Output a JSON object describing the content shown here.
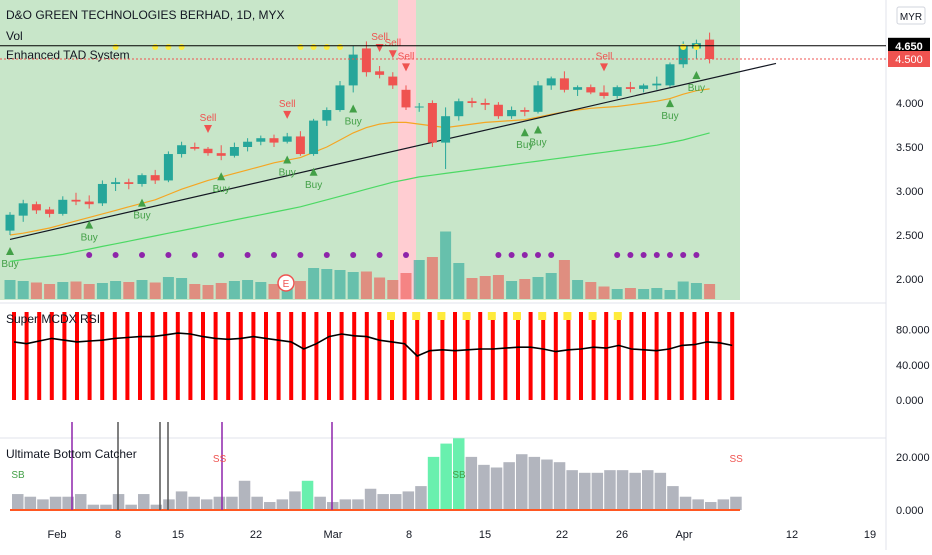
{
  "header": {
    "title": "D&O GREEN TECHNOLOGIES BERHAD, 1D, MYX",
    "vol_label": "Vol",
    "indicator_label": "Enhanced TAD System",
    "currency_label": "MYR"
  },
  "price_tags": {
    "last_price": "4.650",
    "last_price_color": "#000000",
    "close_price": "4.500",
    "close_price_color": "#ef5350"
  },
  "panel2": {
    "title": "Super MCDX RSI"
  },
  "panel3": {
    "title": "Ultimate Bottom Catcher"
  },
  "colors": {
    "up": "#26a69a",
    "down": "#ef5350",
    "bg_green": "#c8e6c9",
    "highlight": "#ffcdd2",
    "buy": "#43a047",
    "sell": "#ef5350",
    "ema_orange": "#f5a623",
    "ma_green": "#4cd964",
    "purple": "#8e24aa",
    "yellow": "#ffeb3b"
  },
  "chart_data": [
    {
      "type": "candlestick",
      "title": "D&O GREEN TECHNOLOGIES BERHAD, 1D, MYX",
      "ylim": [
        1.8,
        5.0
      ],
      "yticks": [
        "2.000",
        "2.500",
        "3.000",
        "3.500",
        "4.000",
        "4.500"
      ],
      "xticks": [
        "Feb",
        "8",
        "15",
        "22",
        "Mar",
        "8",
        "15",
        "22",
        "26",
        "Apr",
        "12",
        "19"
      ],
      "candles": [
        {
          "o": 2.55,
          "h": 2.76,
          "l": 2.5,
          "c": 2.73
        },
        {
          "o": 2.72,
          "h": 2.9,
          "l": 2.65,
          "c": 2.86
        },
        {
          "o": 2.85,
          "h": 2.88,
          "l": 2.74,
          "c": 2.78
        },
        {
          "o": 2.79,
          "h": 2.82,
          "l": 2.7,
          "c": 2.74
        },
        {
          "o": 2.74,
          "h": 2.94,
          "l": 2.72,
          "c": 2.9
        },
        {
          "o": 2.9,
          "h": 2.98,
          "l": 2.84,
          "c": 2.88
        },
        {
          "o": 2.88,
          "h": 2.95,
          "l": 2.8,
          "c": 2.85
        },
        {
          "o": 2.86,
          "h": 3.12,
          "l": 2.83,
          "c": 3.08
        },
        {
          "o": 3.08,
          "h": 3.15,
          "l": 3.0,
          "c": 3.1
        },
        {
          "o": 3.1,
          "h": 3.14,
          "l": 3.02,
          "c": 3.08
        },
        {
          "o": 3.08,
          "h": 3.2,
          "l": 3.05,
          "c": 3.18
        },
        {
          "o": 3.18,
          "h": 3.24,
          "l": 3.08,
          "c": 3.12
        },
        {
          "o": 3.12,
          "h": 3.45,
          "l": 3.1,
          "c": 3.42
        },
        {
          "o": 3.42,
          "h": 3.56,
          "l": 3.38,
          "c": 3.52
        },
        {
          "o": 3.5,
          "h": 3.55,
          "l": 3.46,
          "c": 3.48
        },
        {
          "o": 3.48,
          "h": 3.5,
          "l": 3.4,
          "c": 3.43
        },
        {
          "o": 3.43,
          "h": 3.52,
          "l": 3.35,
          "c": 3.4
        },
        {
          "o": 3.4,
          "h": 3.55,
          "l": 3.38,
          "c": 3.5
        },
        {
          "o": 3.5,
          "h": 3.6,
          "l": 3.45,
          "c": 3.56
        },
        {
          "o": 3.56,
          "h": 3.63,
          "l": 3.52,
          "c": 3.6
        },
        {
          "o": 3.6,
          "h": 3.64,
          "l": 3.5,
          "c": 3.55
        },
        {
          "o": 3.56,
          "h": 3.66,
          "l": 3.54,
          "c": 3.62
        },
        {
          "o": 3.62,
          "h": 3.68,
          "l": 3.4,
          "c": 3.42
        },
        {
          "o": 3.42,
          "h": 3.82,
          "l": 3.4,
          "c": 3.8
        },
        {
          "o": 3.8,
          "h": 3.95,
          "l": 3.74,
          "c": 3.92
        },
        {
          "o": 3.92,
          "h": 4.25,
          "l": 3.9,
          "c": 4.2
        },
        {
          "o": 4.2,
          "h": 4.65,
          "l": 4.12,
          "c": 4.55
        },
        {
          "o": 4.62,
          "h": 4.7,
          "l": 4.3,
          "c": 4.35
        },
        {
          "o": 4.36,
          "h": 4.42,
          "l": 4.28,
          "c": 4.32
        },
        {
          "o": 4.3,
          "h": 4.35,
          "l": 4.16,
          "c": 4.2
        },
        {
          "o": 4.15,
          "h": 4.2,
          "l": 3.92,
          "c": 3.95
        },
        {
          "o": 3.95,
          "h": 4.0,
          "l": 3.9,
          "c": 3.96
        },
        {
          "o": 4.0,
          "h": 4.03,
          "l": 3.5,
          "c": 3.55
        },
        {
          "o": 3.55,
          "h": 3.95,
          "l": 3.25,
          "c": 3.85
        },
        {
          "o": 3.85,
          "h": 4.05,
          "l": 3.8,
          "c": 4.02
        },
        {
          "o": 4.02,
          "h": 4.06,
          "l": 3.95,
          "c": 4.0
        },
        {
          "o": 4.0,
          "h": 4.05,
          "l": 3.92,
          "c": 3.98
        },
        {
          "o": 3.98,
          "h": 4.01,
          "l": 3.82,
          "c": 3.85
        },
        {
          "o": 3.85,
          "h": 3.96,
          "l": 3.82,
          "c": 3.92
        },
        {
          "o": 3.92,
          "h": 3.95,
          "l": 3.85,
          "c": 3.9
        },
        {
          "o": 3.9,
          "h": 4.25,
          "l": 3.88,
          "c": 4.2
        },
        {
          "o": 4.2,
          "h": 4.3,
          "l": 4.15,
          "c": 4.28
        },
        {
          "o": 4.28,
          "h": 4.36,
          "l": 4.12,
          "c": 4.15
        },
        {
          "o": 4.15,
          "h": 4.2,
          "l": 4.08,
          "c": 4.18
        },
        {
          "o": 4.18,
          "h": 4.21,
          "l": 4.1,
          "c": 4.12
        },
        {
          "o": 4.12,
          "h": 4.2,
          "l": 4.05,
          "c": 4.08
        },
        {
          "o": 4.08,
          "h": 4.2,
          "l": 4.05,
          "c": 4.18
        },
        {
          "o": 4.18,
          "h": 4.24,
          "l": 4.12,
          "c": 4.16
        },
        {
          "o": 4.16,
          "h": 4.22,
          "l": 4.12,
          "c": 4.2
        },
        {
          "o": 4.2,
          "h": 4.3,
          "l": 4.15,
          "c": 4.22
        },
        {
          "o": 4.2,
          "h": 4.46,
          "l": 4.18,
          "c": 4.44
        },
        {
          "o": 4.44,
          "h": 4.7,
          "l": 4.4,
          "c": 4.65
        },
        {
          "o": 4.62,
          "h": 4.72,
          "l": 4.5,
          "c": 4.68
        },
        {
          "o": 4.72,
          "h": 4.8,
          "l": 4.45,
          "c": 4.5
        }
      ],
      "volume": [
        38,
        36,
        33,
        30,
        34,
        35,
        30,
        32,
        36,
        34,
        38,
        33,
        44,
        42,
        30,
        28,
        32,
        36,
        38,
        34,
        30,
        35,
        36,
        62,
        60,
        58,
        54,
        55,
        43,
        38,
        52,
        78,
        84,
        135,
        72,
        42,
        46,
        48,
        36,
        40,
        44,
        52,
        78,
        38,
        34,
        25,
        20,
        22,
        20,
        22,
        18,
        35,
        32,
        30,
        28
      ],
      "signals": {
        "buy": [
          {
            "i": 0,
            "label": "Buy"
          },
          {
            "i": 6,
            "label": "Buy"
          },
          {
            "i": 10,
            "label": "Buy"
          },
          {
            "i": 16,
            "label": "Buy"
          },
          {
            "i": 21,
            "label": "Buy"
          },
          {
            "i": 23,
            "label": "Buy"
          },
          {
            "i": 26,
            "label": "Buy"
          },
          {
            "i": 39,
            "label": "Buy"
          },
          {
            "i": 40,
            "label": "Buy"
          },
          {
            "i": 50,
            "label": "Buy"
          },
          {
            "i": 52,
            "label": "Buy"
          }
        ],
        "sell": [
          {
            "i": 15,
            "label": "Sell"
          },
          {
            "i": 21,
            "label": "Sell"
          },
          {
            "i": 28,
            "label": "Sell"
          },
          {
            "i": 29,
            "label": "Sell"
          },
          {
            "i": 30,
            "label": "Sell"
          },
          {
            "i": 45,
            "label": "Sell"
          }
        ]
      },
      "ema_orange": [
        2.5,
        2.52,
        2.55,
        2.58,
        2.62,
        2.66,
        2.7,
        2.74,
        2.78,
        2.82,
        2.86,
        2.9,
        2.96,
        3.02,
        3.07,
        3.12,
        3.16,
        3.2,
        3.24,
        3.28,
        3.32,
        3.35,
        3.38,
        3.44,
        3.5,
        3.58,
        3.66,
        3.72,
        3.76,
        3.78,
        3.78,
        3.76,
        3.74,
        3.72,
        3.74,
        3.76,
        3.78,
        3.79,
        3.8,
        3.81,
        3.84,
        3.87,
        3.9,
        3.92,
        3.94,
        3.95,
        3.96,
        3.98,
        4.0,
        4.02,
        4.05,
        4.1,
        4.14,
        4.16
      ],
      "ma_green": [
        2.2,
        2.22,
        2.24,
        2.26,
        2.28,
        2.31,
        2.34,
        2.37,
        2.4,
        2.43,
        2.46,
        2.49,
        2.52,
        2.55,
        2.58,
        2.61,
        2.64,
        2.67,
        2.7,
        2.73,
        2.76,
        2.79,
        2.82,
        2.86,
        2.9,
        2.94,
        2.98,
        3.02,
        3.06,
        3.1,
        3.13,
        3.16,
        3.18,
        3.2,
        3.22,
        3.24,
        3.26,
        3.28,
        3.3,
        3.32,
        3.34,
        3.36,
        3.38,
        3.4,
        3.42,
        3.44,
        3.46,
        3.48,
        3.5,
        3.52,
        3.55,
        3.58,
        3.62,
        3.66
      ]
    },
    {
      "type": "bar",
      "title": "Super MCDX RSI",
      "ylim": [
        0,
        100
      ],
      "yticks": [
        "0.000",
        "40.000",
        "80.000"
      ],
      "rsi_line": [
        66,
        64,
        67,
        70,
        68,
        66,
        67,
        68,
        70,
        71,
        72,
        72,
        74,
        76,
        75,
        72,
        70,
        69,
        70,
        72,
        70,
        68,
        66,
        58,
        64,
        72,
        75,
        73,
        72,
        68,
        66,
        64,
        50,
        56,
        57,
        56,
        57,
        58,
        58,
        59,
        60,
        60,
        58,
        55,
        57,
        58,
        60,
        59,
        62,
        58,
        57,
        56,
        58,
        62,
        63,
        66,
        65,
        62
      ]
    },
    {
      "type": "bar",
      "title": "Ultimate Bottom Catcher",
      "ylim": [
        0,
        32
      ],
      "yticks": [
        "0.000",
        "20.000"
      ],
      "values": [
        6,
        5,
        4,
        5,
        5,
        6,
        2,
        2,
        6,
        2,
        6,
        2,
        4,
        7,
        5,
        4,
        5,
        5,
        11,
        5,
        3,
        4,
        7,
        11,
        5,
        3,
        4,
        4,
        8,
        6,
        6,
        7,
        9,
        20,
        25,
        27,
        20,
        17,
        16,
        18,
        21,
        20,
        19,
        18,
        15,
        14,
        14,
        15,
        15,
        14,
        15,
        14,
        9,
        5,
        4,
        3,
        4,
        5
      ],
      "signals": [
        {
          "i": 0,
          "label": "SB"
        },
        {
          "i": 35,
          "label": "SB"
        },
        {
          "i": 16,
          "label": "SS"
        },
        {
          "i": 57,
          "label": "SS"
        }
      ]
    }
  ]
}
